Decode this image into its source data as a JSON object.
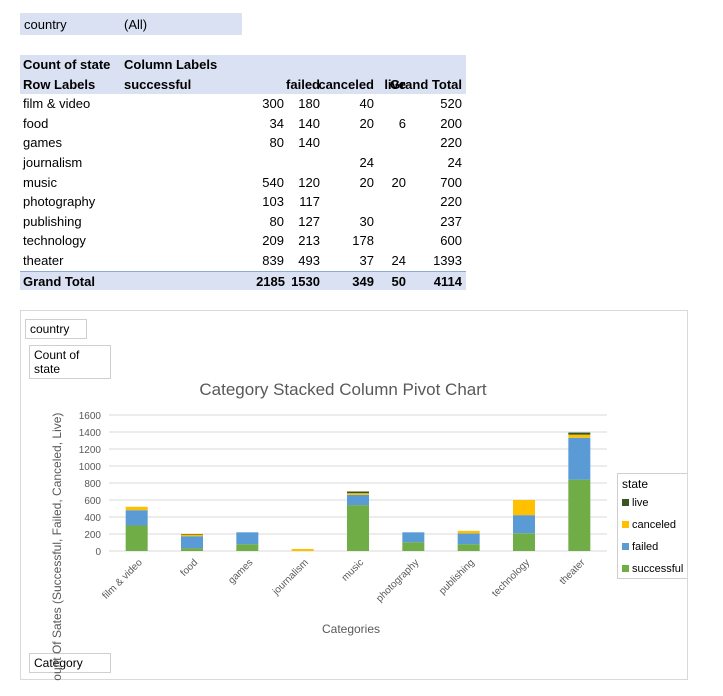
{
  "filter": {
    "label": "country",
    "value": "(All)"
  },
  "pivot": {
    "header1": {
      "corner": "Count of state",
      "col_labels": "Column Labels"
    },
    "header2": {
      "row_labels": "Row Labels",
      "successful": "successful",
      "failed": "failed",
      "canceled": "canceled",
      "live": "live",
      "grand_total": "Grand Total"
    },
    "rows": [
      {
        "category": "film & video",
        "successful": "300",
        "failed": "180",
        "canceled": "40",
        "live": "",
        "total": "520"
      },
      {
        "category": "food",
        "successful": "34",
        "failed": "140",
        "canceled": "20",
        "live": "6",
        "total": "200"
      },
      {
        "category": "games",
        "successful": "80",
        "failed": "140",
        "canceled": "",
        "live": "",
        "total": "220"
      },
      {
        "category": "journalism",
        "successful": "",
        "failed": "",
        "canceled": "24",
        "live": "",
        "total": "24"
      },
      {
        "category": "music",
        "successful": "540",
        "failed": "120",
        "canceled": "20",
        "live": "20",
        "total": "700"
      },
      {
        "category": "photography",
        "successful": "103",
        "failed": "117",
        "canceled": "",
        "live": "",
        "total": "220"
      },
      {
        "category": "publishing",
        "successful": "80",
        "failed": "127",
        "canceled": "30",
        "live": "",
        "total": "237"
      },
      {
        "category": "technology",
        "successful": "209",
        "failed": "213",
        "canceled": "178",
        "live": "",
        "total": "600"
      },
      {
        "category": "theater",
        "successful": "839",
        "failed": "493",
        "canceled": "37",
        "live": "24",
        "total": "1393"
      }
    ],
    "grand_total": {
      "label": "Grand Total",
      "successful": "2185",
      "failed": "1530",
      "canceled": "349",
      "live": "50",
      "total": "4114"
    }
  },
  "chart_buttons": {
    "filter": "country",
    "value_field": "Count of state",
    "axis_field": "Category"
  },
  "legend_title": "state",
  "colors": {
    "successful": "#70ad47",
    "failed": "#5b9bd5",
    "canceled": "#ffc000",
    "live": "#375623",
    "header_fill": "#d9e1f2",
    "gridline": "#d9d9d9"
  },
  "chart_data": {
    "type": "bar",
    "stacked": true,
    "title": "Category Stacked Column Pivot Chart",
    "xlabel": "Categories",
    "ylabel": "Count Of Sates (Successful, Failed, Canceled, Live)",
    "ylim": [
      0,
      1600
    ],
    "yticks": [
      0,
      200,
      400,
      600,
      800,
      1000,
      1200,
      1400,
      1600
    ],
    "grid": true,
    "legend_position": "right",
    "categories": [
      "film & video",
      "food",
      "games",
      "journalism",
      "music",
      "photography",
      "publishing",
      "technology",
      "theater"
    ],
    "series": [
      {
        "name": "successful",
        "values": [
          300,
          34,
          80,
          0,
          540,
          103,
          80,
          209,
          839
        ]
      },
      {
        "name": "failed",
        "values": [
          180,
          140,
          140,
          0,
          120,
          117,
          127,
          213,
          493
        ]
      },
      {
        "name": "canceled",
        "values": [
          40,
          20,
          0,
          24,
          20,
          0,
          30,
          178,
          37
        ]
      },
      {
        "name": "live",
        "values": [
          0,
          6,
          0,
          0,
          20,
          0,
          0,
          0,
          24
        ]
      }
    ]
  }
}
